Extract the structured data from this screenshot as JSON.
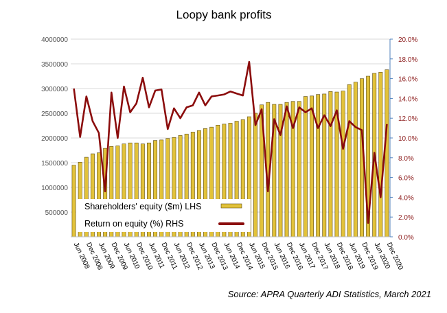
{
  "chart_data": {
    "type": "bar",
    "title": "Loopy bank profits",
    "source": "Source: APRA Quarterly ADI Statistics, March 2021",
    "left_axis": {
      "range": [
        0,
        4000000
      ],
      "ticks": [
        0,
        500000,
        1000000,
        1500000,
        2000000,
        2500000,
        3000000,
        3500000,
        4000000
      ],
      "tick_labels": [
        "",
        "500000",
        "1000000",
        "1500000",
        "2000000",
        "2500000",
        "3000000",
        "3500000",
        "4000000"
      ]
    },
    "right_axis": {
      "range": [
        0,
        20
      ],
      "ticks": [
        0,
        2,
        4,
        6,
        8,
        10,
        12,
        14,
        16,
        18,
        20
      ],
      "tick_labels": [
        "0.0%",
        "2.0%",
        "4.0%",
        "6.0%",
        "8.0%",
        "10.0%",
        "12.0%",
        "14.0%",
        "16.0%",
        "18.0%",
        "20.0%"
      ]
    },
    "x_tick_labels": [
      "Jun 2008",
      "Dec 2008",
      "Jun 2009",
      "Dec 2009",
      "Jun 2010",
      "Dec 2010",
      "Jun 2011",
      "Dec 2011",
      "Jun 2012",
      "Dec 2012",
      "Jun 2013",
      "Dec 2013",
      "Jun 2014",
      "Dec 2014",
      "Jun 2015",
      "Dec 2015",
      "Jun 2016",
      "Dec 2016",
      "Jun 2017",
      "Dec 2017",
      "Jun 2018",
      "Dec 2018",
      "Jun 2019",
      "Dec 2019",
      "Jun 2020",
      "Dec 2020"
    ],
    "quarters": 51,
    "series": [
      {
        "name": "Shareholders' equity ($m) LHS",
        "kind": "bar",
        "axis": "left",
        "color": "#e2c23a",
        "values": [
          1450000,
          1510000,
          1610000,
          1680000,
          1700000,
          1790000,
          1830000,
          1840000,
          1880000,
          1900000,
          1900000,
          1880000,
          1900000,
          1950000,
          1960000,
          1990000,
          2010000,
          2050000,
          2080000,
          2120000,
          2150000,
          2190000,
          2220000,
          2260000,
          2280000,
          2300000,
          2340000,
          2370000,
          2430000,
          2500000,
          2670000,
          2720000,
          2680000,
          2680000,
          2720000,
          2740000,
          2740000,
          2840000,
          2850000,
          2880000,
          2890000,
          2940000,
          2930000,
          2950000,
          3080000,
          3130000,
          3200000,
          3250000,
          3310000,
          3330000,
          3380000
        ]
      },
      {
        "name": "Return on equity  (%)  RHS",
        "kind": "line",
        "axis": "right",
        "color": "#8b0c0c",
        "values": [
          15.0,
          10.1,
          14.2,
          11.7,
          10.5,
          4.6,
          14.6,
          10.0,
          15.2,
          12.6,
          13.5,
          16.1,
          13.1,
          14.8,
          14.9,
          10.9,
          13.0,
          12.0,
          13.1,
          13.3,
          14.6,
          13.3,
          14.2,
          14.3,
          14.4,
          14.7,
          14.5,
          14.3,
          17.7,
          11.3,
          12.9,
          4.6,
          11.9,
          10.3,
          13.2,
          11.0,
          13.1,
          12.6,
          13.0,
          11.0,
          12.3,
          11.2,
          12.8,
          8.9,
          11.7,
          11.1,
          10.8,
          1.4,
          8.5,
          4.0,
          11.4
        ]
      }
    ],
    "legend": "bottom-left inside plot",
    "grid": true
  }
}
